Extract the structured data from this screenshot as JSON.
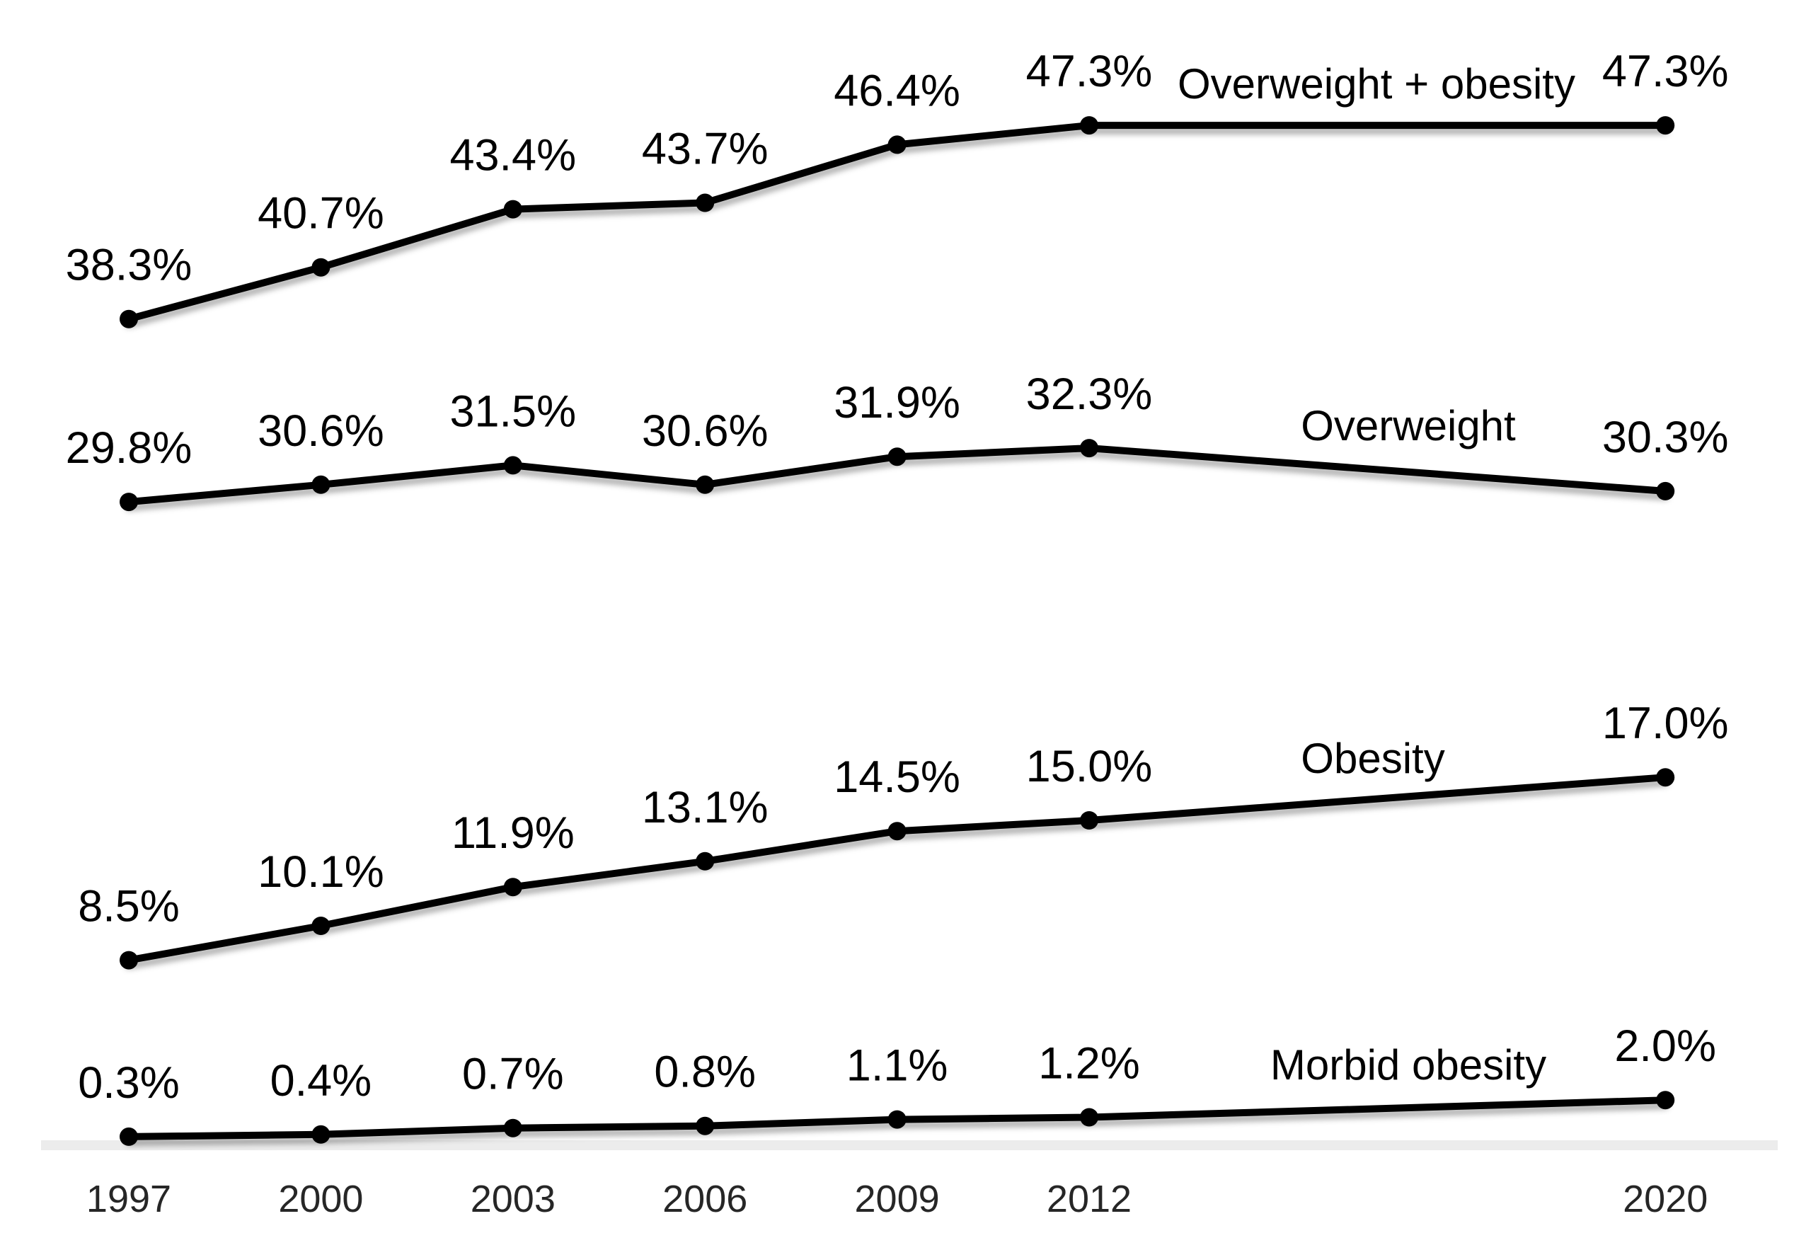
{
  "page": {
    "background": "#ffffff"
  },
  "chart_data": {
    "type": "line",
    "title": "",
    "xlabel": "",
    "ylabel": "",
    "x_tick_labels": [
      "1997",
      "2000",
      "2003",
      "2006",
      "2009",
      "2012",
      "2020"
    ],
    "x_slots": [
      0,
      1,
      2,
      3,
      4,
      5,
      8
    ],
    "ylim": [
      0,
      52
    ],
    "grid": false,
    "y_axis_visible": false,
    "legend_position": "inline-right-of-lines",
    "line_color": "#000000",
    "marker_color": "#000000",
    "label_color": "#000000",
    "tick_label_color": "#262626",
    "axis_stripe_color": "#ececec",
    "series": [
      {
        "name": "Overweight + obesity",
        "values": [
          38.3,
          40.7,
          43.4,
          43.7,
          46.4,
          47.3,
          47.3
        ],
        "labels": [
          "38.3%",
          "40.7%",
          "43.4%",
          "43.7%",
          "46.4%",
          "47.3%",
          "47.3%"
        ]
      },
      {
        "name": "Overweight",
        "values": [
          29.8,
          30.6,
          31.5,
          30.6,
          31.9,
          32.3,
          30.3
        ],
        "labels": [
          "29.8%",
          "30.6%",
          "31.5%",
          "30.6%",
          "31.9%",
          "32.3%",
          "30.3%"
        ]
      },
      {
        "name": "Obesity",
        "values": [
          8.5,
          10.1,
          11.9,
          13.1,
          14.5,
          15.0,
          17.0
        ],
        "labels": [
          "8.5%",
          "10.1%",
          "11.9%",
          "13.1%",
          "14.5%",
          "15.0%",
          "17.0%"
        ]
      },
      {
        "name": "Morbid obesity",
        "values": [
          0.3,
          0.4,
          0.7,
          0.8,
          1.1,
          1.2,
          2.0
        ],
        "labels": [
          "0.3%",
          "0.4%",
          "0.7%",
          "0.8%",
          "1.1%",
          "1.2%",
          "2.0%"
        ]
      }
    ]
  }
}
